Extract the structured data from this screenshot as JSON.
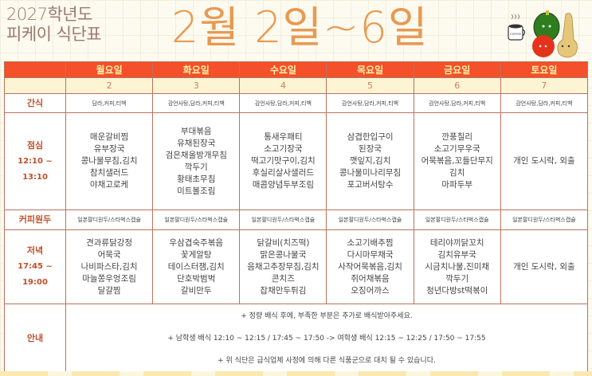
{
  "header": {
    "subtitle_line1": "2027학년도",
    "subtitle_line2": "피케이 식단표",
    "title": "2월 2일~6일",
    "coffee_cup_text": "COFFEE"
  },
  "days": [
    {
      "name": "월요일",
      "date": "2",
      "snack": "담라,커피,티백",
      "lunch": [
        "매운갈비찜",
        "유부장국",
        "콩나물무침,김치",
        "참치샐러드",
        "야채고로케"
      ],
      "coffee": "일본팔디원두/스타벅스캡슐",
      "dinner": [
        "견과류닭강정",
        "어묵국",
        "나비파스타,김치",
        "마늘쫑우엉조림",
        "달걀찜"
      ]
    },
    {
      "name": "화요일",
      "date": "3",
      "snack": "감언사탕,담라,커피,티백",
      "lunch": [
        "부대볶음",
        "유채된장국",
        "검은채올방개무침",
        "깍두기",
        "황태초무침",
        "미트볼조림"
      ],
      "coffee": "일본팔디원두/스타벅스캡슐",
      "dinner": [
        "우삼겹숙주볶음",
        "꽃게알탕",
        "테이스터잼,김치",
        "단호박범벅",
        "갈비만두"
      ]
    },
    {
      "name": "수요일",
      "date": "4",
      "snack": "감언사탕,담라,커피,티백",
      "lunch": [
        "통새우패티",
        "소고기장국",
        "떡고기맛구이,김치",
        "후실리살사샐러드",
        "매콤양념두부조림"
      ],
      "coffee": "일본팔디원두/스타벅스캡슐",
      "dinner": [
        "닭갈비(치즈떡)",
        "맑은콩나물국",
        "음채고추장무침,김치",
        "콘치즈",
        "잡채만두튀김"
      ]
    },
    {
      "name": "목요일",
      "date": "5",
      "snack": "감언사탕,담라,커피,티백",
      "lunch": [
        "삼겹한입구이",
        "된장국",
        "깻잎지,김치",
        "콩나물미나리무침",
        "포고버서탕수"
      ],
      "coffee": "일본팔디원두/스타벅스캡슐",
      "dinner": [
        "소고기배추찜",
        "다시마무채국",
        "사작어묵볶음,김치",
        "쥐어채볶음",
        "오징어까스"
      ]
    },
    {
      "name": "금요일",
      "date": "6",
      "snack": "감언사탕,담라,커피,티백",
      "lunch": [
        "깐풍칠리",
        "소고기무우국",
        "어묵볶음,꼬들단무지",
        "김치",
        "마파두부"
      ],
      "coffee": "일본팔디원두/스타벅스캡슐",
      "dinner": [
        "테리야끼닭꼬치",
        "김치유부국",
        "시금치나물,진미채",
        "깍두기",
        "청년다방st떡볶이"
      ]
    },
    {
      "name": "토요일",
      "date": "7",
      "snack": "감언사탕,담라,커피,티백",
      "lunch": [
        "개인 도시락, 외출"
      ],
      "coffee": "일본팔디원두/스타벅스캡슐",
      "dinner": [
        "개인 도시락, 외출"
      ]
    }
  ],
  "labels": {
    "snack": "간식",
    "lunch": "점심",
    "lunch_time": "12:10 ~ 13:10",
    "coffee": "커피원두",
    "dinner": "저녁",
    "dinner_time": "17:45 ~ 19:00",
    "notice": "안내"
  },
  "notices": [
    "+ 정량 배식 후에, 부족한 부분은 추가로 배식받아주세요.",
    "+ 남학생 배식 12:10 ~ 12:15 / 17:45 ~ 17:50 -> 여학생 배식 12:15 ~ 12:25 / 17:50 ~ 17:55",
    "+ 위 식단은 급식업체 사정에 의해 다른 식품군으로 대치 될 수 있습니다."
  ],
  "colors": {
    "header_bg": "#f4502a",
    "header_text": "#fff3a8",
    "label_text": "#c0502a",
    "title": "#e79a52",
    "date_row": "#fdf4d4"
  }
}
